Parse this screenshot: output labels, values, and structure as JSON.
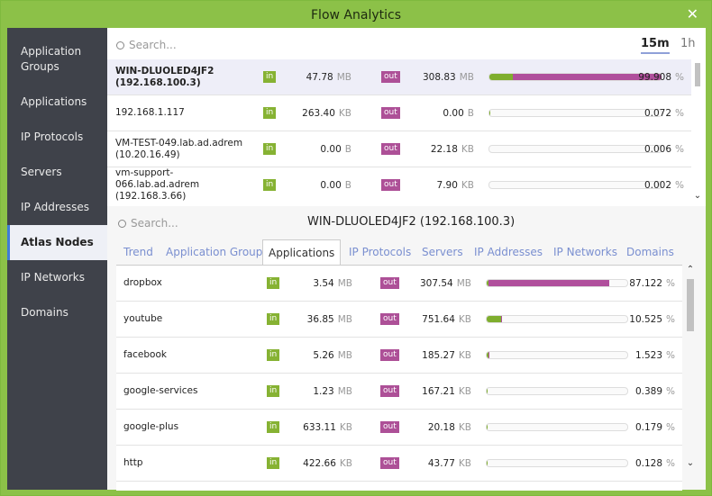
{
  "window": {
    "title": "Flow Analytics",
    "close": "✕"
  },
  "sidebar": {
    "items": [
      "Application Groups",
      "Applications",
      "IP Protocols",
      "Servers",
      "IP Addresses",
      "Atlas Nodes",
      "IP Networks",
      "Domains"
    ],
    "selected": 5
  },
  "labels": {
    "in": "in",
    "out": "out",
    "percent_sign": "%"
  },
  "top": {
    "search": "Search...",
    "time_tabs": [
      "15m",
      "1h"
    ],
    "active_tab": 0,
    "rows": [
      {
        "name": "WIN-DLUOLED4JF2 (192.168.100.3)",
        "in": "47.78",
        "in_unit": "MB",
        "out": "308.83",
        "out_unit": "MB",
        "percent": 99.908
      },
      {
        "name": "192.168.1.117",
        "in": "263.40",
        "in_unit": "KB",
        "out": "0.00",
        "out_unit": "B",
        "percent": 0.072
      },
      {
        "name": "VM-TEST-049.lab.ad.adrem (10.20.16.49)",
        "in": "0.00",
        "in_unit": "B",
        "out": "22.18",
        "out_unit": "KB",
        "percent": 0.006
      },
      {
        "name": "vm-support-066.lab.ad.adrem (192.168.3.66)",
        "in": "0.00",
        "in_unit": "B",
        "out": "7.90",
        "out_unit": "KB",
        "percent": 0.002
      }
    ]
  },
  "detail": {
    "search": "Search...",
    "title": "WIN-DLUOLED4JF2 (192.168.100.3)",
    "tabs": [
      "Trend",
      "Application Groups",
      "Applications",
      "IP Protocols",
      "Servers",
      "IP Addresses",
      "IP Networks",
      "Domains"
    ],
    "active_tab": 2,
    "rows": [
      {
        "name": "dropbox",
        "in": "3.54",
        "in_unit": "MB",
        "out": "307.54",
        "out_unit": "MB",
        "percent": 87.122
      },
      {
        "name": "youtube",
        "in": "36.85",
        "in_unit": "MB",
        "out": "751.64",
        "out_unit": "KB",
        "percent": 10.525
      },
      {
        "name": "facebook",
        "in": "5.26",
        "in_unit": "MB",
        "out": "185.27",
        "out_unit": "KB",
        "percent": 1.523
      },
      {
        "name": "google-services",
        "in": "1.23",
        "in_unit": "MB",
        "out": "167.21",
        "out_unit": "KB",
        "percent": 0.389
      },
      {
        "name": "google-plus",
        "in": "633.11",
        "in_unit": "KB",
        "out": "20.18",
        "out_unit": "KB",
        "percent": 0.179
      },
      {
        "name": "http",
        "in": "422.66",
        "in_unit": "KB",
        "out": "43.77",
        "out_unit": "KB",
        "percent": 0.128
      }
    ]
  }
}
